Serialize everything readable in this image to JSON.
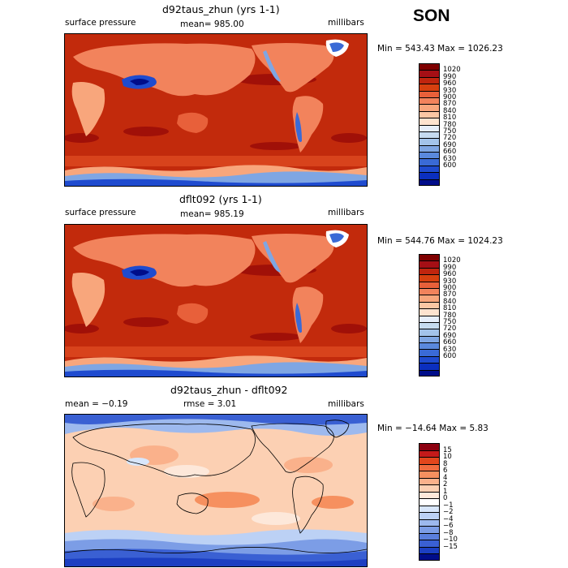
{
  "season": "SON",
  "palettes": {
    "pressure": [
      "#7f0000",
      "#a50f15",
      "#c0250e",
      "#d7400f",
      "#e8603a",
      "#f2835c",
      "#f8a67c",
      "#fbc7a4",
      "#fde3cf",
      "#e6eefa",
      "#c6dbef",
      "#a3c3ea",
      "#7fa6e3",
      "#5a89dd",
      "#3a6ad6",
      "#1f4bcf",
      "#0b2fbf",
      "#000d8a"
    ],
    "difference": [
      "#8c0010",
      "#c41a1a",
      "#e2461c",
      "#f06b3e",
      "#f6905f",
      "#fab18b",
      "#fcd0b3",
      "#fde8da",
      "#ffffff",
      "#d8e6fb",
      "#bcd1f5",
      "#9db9ee",
      "#7c9de6",
      "#5a7fdd",
      "#3a60d3",
      "#1c3fc2",
      "#000d8a"
    ]
  },
  "chart_data": [
    {
      "type": "heatmap",
      "title": "d92taus_zhun (yrs 1-1)",
      "left_label": "surface pressure",
      "center_label": "mean= 985.00",
      "units": "millibars",
      "min_max": "Min = 543.43 Max = 1026.23",
      "colorbar_levels": [
        "1020",
        "990",
        "960",
        "930",
        "900",
        "870",
        "840",
        "810",
        "780",
        "750",
        "720",
        "690",
        "660",
        "630",
        "600"
      ]
    },
    {
      "type": "heatmap",
      "title": "dflt092 (yrs 1-1)",
      "left_label": "surface pressure",
      "center_label": "mean= 985.19",
      "units": "millibars",
      "min_max": "Min = 544.76 Max = 1024.23",
      "colorbar_levels": [
        "1020",
        "990",
        "960",
        "930",
        "900",
        "870",
        "840",
        "810",
        "780",
        "750",
        "720",
        "690",
        "660",
        "630",
        "600"
      ]
    },
    {
      "type": "heatmap",
      "title": "d92taus_zhun - dflt092",
      "left_label": "mean =  −0.19",
      "center_label": "rmse =    3.01",
      "units": "millibars",
      "min_max": "Min = −14.64 Max =     5.83",
      "colorbar_levels": [
        "15",
        "10",
        "8",
        "6",
        "4",
        "2",
        "1",
        "0",
        "−1",
        "−2",
        "−4",
        "−6",
        "−8",
        "−10",
        "−15"
      ]
    }
  ]
}
